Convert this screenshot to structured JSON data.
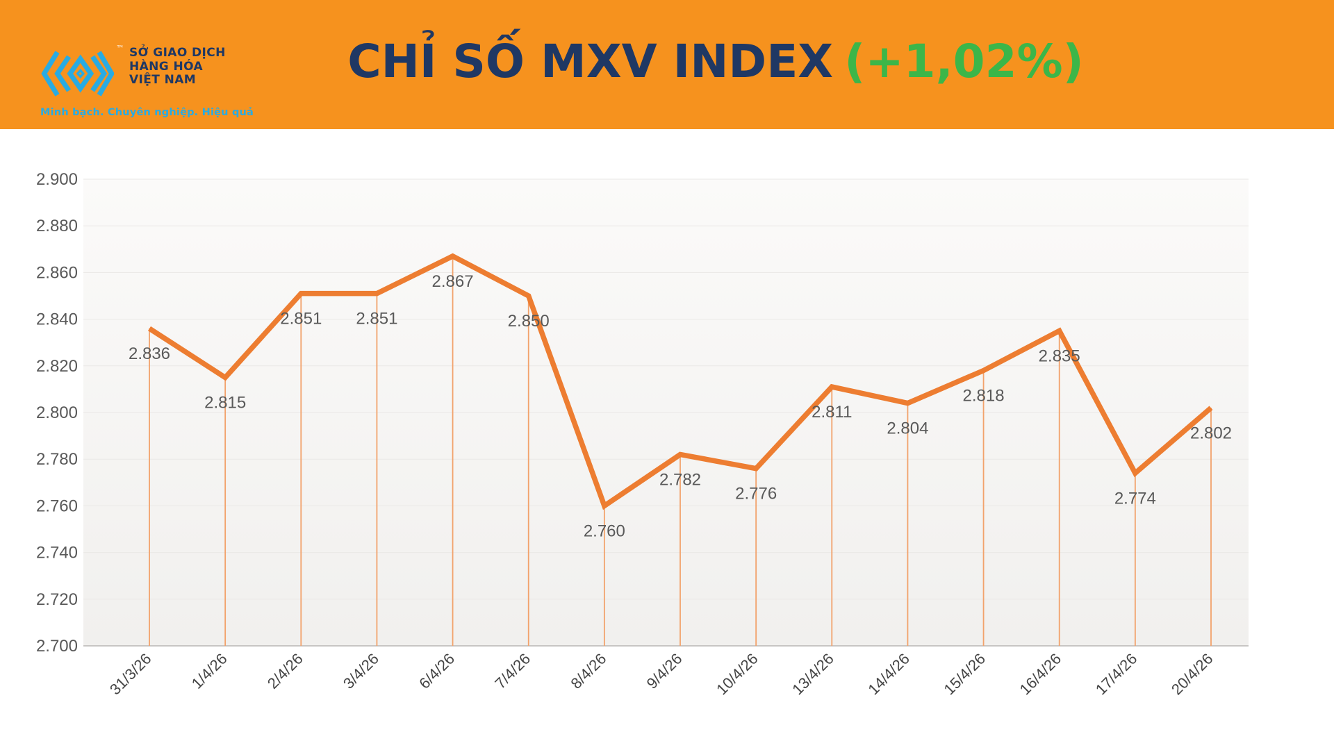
{
  "header": {
    "logo": {
      "org_lines": [
        "SỞ GIAO DỊCH",
        "HÀNG HÓA",
        "VIỆT NAM"
      ],
      "tagline": "Minh bạch. Chuyên nghiệp. Hiệu quả",
      "trademark": "™"
    },
    "title": "CHỈ SỐ MXV INDEX",
    "change": "(+1,02%)"
  },
  "colors": {
    "header_bg": "#F6921E",
    "title_navy": "#1F3864",
    "change_green": "#3CB649",
    "logo_cyan": "#29ABE2",
    "line_orange": "#ED7D31",
    "dropline_orange": "#F2A26B",
    "label_gray": "#595959",
    "xlabel_gray": "#454545",
    "axis_gray": "#C7C5C3",
    "grid_gray": "#EAE8E6",
    "plot_bg_top": "#FBFAF9",
    "plot_bg_bottom": "#F1F0EE"
  },
  "chart_data": {
    "type": "line",
    "title": "CHỈ SỐ MXV INDEX (+1,02%)",
    "categories": [
      "31/3/26",
      "1/4/26",
      "2/4/26",
      "3/4/26",
      "6/4/26",
      "7/4/26",
      "8/4/26",
      "9/4/26",
      "10/4/26",
      "13/4/26",
      "14/4/26",
      "15/4/26",
      "16/4/26",
      "17/4/26",
      "20/4/26"
    ],
    "values": [
      2836,
      2815,
      2851,
      2851,
      2867,
      2850,
      2760,
      2782,
      2776,
      2811,
      2804,
      2818,
      2835,
      2774,
      2802
    ],
    "value_labels": [
      "2.836",
      "2.815",
      "2.851",
      "2.851",
      "2.867",
      "2.850",
      "2.760",
      "2.782",
      "2.776",
      "2.811",
      "2.804",
      "2.818",
      "2.835",
      "2.774",
      "2.802"
    ],
    "ylim": [
      2700,
      2900
    ],
    "ytick_step": 20,
    "ytick_labels": [
      "2.700",
      "2.720",
      "2.740",
      "2.760",
      "2.780",
      "2.800",
      "2.820",
      "2.840",
      "2.860",
      "2.880",
      "2.900"
    ],
    "xlabel": "",
    "ylabel": "",
    "legend": "none",
    "grid": "faint-horizontal",
    "droplines": true
  }
}
